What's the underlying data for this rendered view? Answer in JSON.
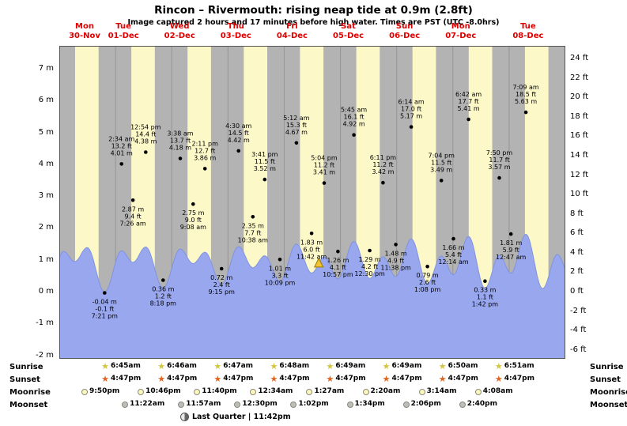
{
  "title": "Rincon – Rivermouth: rising  neap tide at 0.9m (2.8ft)",
  "subtitle": "Image captured 2 hours and 17 minutes before high water. Times are PST (UTC -8.0hrs)",
  "chart_data": {
    "type": "area",
    "x_range_hours": 216,
    "display_scale": 0.32,
    "daylight": {
      "sunrise_hour": 6.75,
      "sunset_hour": 16.78
    },
    "days": [
      {
        "name": "Mon",
        "date": "30-Nov"
      },
      {
        "name": "Tue",
        "date": "01-Dec"
      },
      {
        "name": "Wed",
        "date": "02-Dec"
      },
      {
        "name": "Thu",
        "date": "03-Dec"
      },
      {
        "name": "Fri",
        "date": "04-Dec"
      },
      {
        "name": "Sat",
        "date": "05-Dec"
      },
      {
        "name": "Sun",
        "date": "06-Dec"
      },
      {
        "name": "Mon",
        "date": "07-Dec"
      },
      {
        "name": "Tue",
        "date": "08-Dec"
      }
    ],
    "y_left_ticks": [
      {
        "value": 7,
        "label": "7 m"
      },
      {
        "value": 6,
        "label": "6 m"
      },
      {
        "value": 5,
        "label": "5 m"
      },
      {
        "value": 4,
        "label": "4 m"
      },
      {
        "value": 3,
        "label": "3 m"
      },
      {
        "value": 2,
        "label": "2 m"
      },
      {
        "value": 1,
        "label": "1 m"
      },
      {
        "value": 0,
        "label": "0 m"
      },
      {
        "value": -1,
        "label": "-1 m"
      },
      {
        "value": -2,
        "label": "-2 m"
      }
    ],
    "y_right_ticks": [
      {
        "value": 24,
        "label": "24 ft"
      },
      {
        "value": 22,
        "label": "22 ft"
      },
      {
        "value": 20,
        "label": "20 ft"
      },
      {
        "value": 18,
        "label": "18 ft"
      },
      {
        "value": 16,
        "label": "16 ft"
      },
      {
        "value": 14,
        "label": "14 ft"
      },
      {
        "value": 12,
        "label": "12 ft"
      },
      {
        "value": 10,
        "label": "10 ft"
      },
      {
        "value": 8,
        "label": "8 ft"
      },
      {
        "value": 6,
        "label": "6 ft"
      },
      {
        "value": 4,
        "label": "4 ft"
      },
      {
        "value": 2,
        "label": "2 ft"
      },
      {
        "value": 0,
        "label": "0 ft"
      },
      {
        "value": -2,
        "label": "-2 ft"
      },
      {
        "value": -4,
        "label": "-4 ft"
      },
      {
        "value": -6,
        "label": "-6 ft"
      }
    ],
    "tide_events": [
      {
        "day": 0,
        "kind": "low",
        "t_hours": 19.35,
        "height_m": -0.04,
        "lines": [
          "-0.04 m",
          "-0.1 ft",
          "7:21 pm"
        ]
      },
      {
        "day": 1,
        "kind": "high",
        "t_hours": 26.567,
        "height_m": 4.01,
        "lines": [
          "2:34 am",
          "13.2 ft",
          "4.01 m"
        ]
      },
      {
        "day": 1,
        "kind": "low",
        "t_hours": 31.433,
        "height_m": 2.87,
        "lines": [
          "2.87 m",
          "9.4 ft",
          "7:26 am"
        ]
      },
      {
        "day": 1,
        "kind": "high",
        "t_hours": 36.9,
        "height_m": 4.38,
        "lines": [
          "12:54 pm",
          "14.4 ft",
          "4.38 m"
        ]
      },
      {
        "day": 1,
        "kind": "low",
        "t_hours": 44.3,
        "height_m": 0.36,
        "lines": [
          "0.36 m",
          "1.2 ft",
          "8:18 pm"
        ]
      },
      {
        "day": 2,
        "kind": "high",
        "t_hours": 51.633,
        "height_m": 4.18,
        "lines": [
          "3:38 am",
          "13.7 ft",
          "4.18 m"
        ]
      },
      {
        "day": 2,
        "kind": "low",
        "t_hours": 57.133,
        "height_m": 2.75,
        "lines": [
          "2.75 m",
          "9.0 ft",
          "9:08 am"
        ]
      },
      {
        "day": 2,
        "kind": "high",
        "t_hours": 62.183,
        "height_m": 3.86,
        "lines": [
          "2:11 pm",
          "12.7 ft",
          "3.86 m"
        ]
      },
      {
        "day": 2,
        "kind": "low",
        "t_hours": 69.25,
        "height_m": 0.72,
        "lines": [
          "0.72 m",
          "2.4 ft",
          "9:15 pm"
        ]
      },
      {
        "day": 3,
        "kind": "high",
        "t_hours": 76.5,
        "height_m": 4.42,
        "lines": [
          "4:30 am",
          "14.5 ft",
          "4.42 m"
        ]
      },
      {
        "day": 3,
        "kind": "low",
        "t_hours": 82.633,
        "height_m": 2.35,
        "lines": [
          "2.35 m",
          "7.7 ft",
          "10:38 am"
        ]
      },
      {
        "day": 3,
        "kind": "high",
        "t_hours": 87.683,
        "height_m": 3.52,
        "lines": [
          "3:41 pm",
          "11.5 ft",
          "3.52 m"
        ]
      },
      {
        "day": 3,
        "kind": "low",
        "t_hours": 94.15,
        "height_m": 1.01,
        "lines": [
          "1.01 m",
          "3.3 ft",
          "10:09 pm"
        ]
      },
      {
        "day": 4,
        "kind": "high",
        "t_hours": 101.2,
        "height_m": 4.67,
        "lines": [
          "5:12 am",
          "15.3 ft",
          "4.67 m"
        ]
      },
      {
        "day": 4,
        "kind": "low",
        "t_hours": 107.7,
        "height_m": 1.83,
        "lines": [
          "1.83 m",
          "6.0 ft",
          "11:42 am"
        ]
      },
      {
        "day": 4,
        "kind": "high",
        "t_hours": 113.067,
        "height_m": 3.41,
        "lines": [
          "5:04 pm",
          "11.2 ft",
          "3.41 m"
        ]
      },
      {
        "day": 4,
        "kind": "low",
        "t_hours": 118.95,
        "height_m": 1.26,
        "lines": [
          "1.26 m",
          "4.1 ft",
          "10:57 pm"
        ]
      },
      {
        "day": 5,
        "kind": "high",
        "t_hours": 125.75,
        "height_m": 4.92,
        "lines": [
          "5:45 am",
          "16.1 ft",
          "4.92 m"
        ]
      },
      {
        "day": 5,
        "kind": "low",
        "t_hours": 132.5,
        "height_m": 1.29,
        "lines": [
          "1.29 m",
          "4.2 ft",
          "12:30 pm"
        ]
      },
      {
        "day": 5,
        "kind": "high",
        "t_hours": 138.183,
        "height_m": 3.42,
        "lines": [
          "6:11 pm",
          "11.2 ft",
          "3.42 m"
        ]
      },
      {
        "day": 5,
        "kind": "low",
        "t_hours": 143.633,
        "height_m": 1.48,
        "lines": [
          "1.48 m",
          "4.9 ft",
          "11:38 pm"
        ]
      },
      {
        "day": 6,
        "kind": "high",
        "t_hours": 150.233,
        "height_m": 5.17,
        "lines": [
          "6:14 am",
          "17.0 ft",
          "5.17 m"
        ]
      },
      {
        "day": 6,
        "kind": "low",
        "t_hours": 157.133,
        "height_m": 0.79,
        "lines": [
          "0.79 m",
          "2.6 ft",
          "1:08 pm"
        ]
      },
      {
        "day": 6,
        "kind": "high",
        "t_hours": 163.067,
        "height_m": 3.49,
        "lines": [
          "7:04 pm",
          "11.5 ft",
          "3.49 m"
        ]
      },
      {
        "day": 7,
        "kind": "low",
        "t_hours": 168.233,
        "height_m": 1.66,
        "lines": [
          "1.66 m",
          "5.4 ft",
          "12:14 am"
        ]
      },
      {
        "day": 7,
        "kind": "high",
        "t_hours": 174.7,
        "height_m": 5.41,
        "lines": [
          "6:42 am",
          "17.7 ft",
          "5.41 m"
        ]
      },
      {
        "day": 7,
        "kind": "low",
        "t_hours": 181.7,
        "height_m": 0.33,
        "lines": [
          "0.33 m",
          "1.1 ft",
          "1:42 pm"
        ]
      },
      {
        "day": 7,
        "kind": "high",
        "t_hours": 187.833,
        "height_m": 3.57,
        "lines": [
          "7:50 pm",
          "11.7 ft",
          "3.57 m"
        ]
      },
      {
        "day": 8,
        "kind": "low",
        "t_hours": 192.783,
        "height_m": 1.81,
        "lines": [
          "1.81 m",
          "5.9 ft",
          "12:47 am"
        ]
      },
      {
        "day": 8,
        "kind": "high",
        "t_hours": 199.15,
        "height_m": 5.63,
        "lines": [
          "7:09 am",
          "18.5 ft",
          "5.63 m"
        ]
      }
    ],
    "curve_padding_before": [
      {
        "t": -4.75,
        "h": -0.3
      },
      {
        "t": 1.75,
        "h": 3.95
      },
      {
        "t": 6.6,
        "h": 2.95
      },
      {
        "t": 11.9,
        "h": 4.32
      }
    ],
    "curve_padding_after": [
      {
        "t": 206.3,
        "h": 0.3
      },
      {
        "t": 212.6,
        "h": 3.65
      },
      {
        "t": 217.3,
        "h": 1.95
      }
    ],
    "now_marker": {
      "t_hours": 110.78
    },
    "colors": {
      "plot_bg": "#b3b3b3",
      "daylight": "#fcf8c8",
      "tide_fill": "#99a7ef",
      "tide_edge": "#8093e0",
      "day_label": "#e00000",
      "annotation": "#000000"
    }
  },
  "astro": {
    "rows": [
      {
        "id": "sunrise",
        "label": "Sunrise",
        "icon": "sunrise-star",
        "color": "#d2c63c",
        "entries": [
          {
            "day": 1,
            "time": "6:45am"
          },
          {
            "day": 2,
            "time": "6:46am"
          },
          {
            "day": 3,
            "time": "6:47am"
          },
          {
            "day": 4,
            "time": "6:48am"
          },
          {
            "day": 5,
            "time": "6:49am"
          },
          {
            "day": 6,
            "time": "6:49am"
          },
          {
            "day": 7,
            "time": "6:50am"
          },
          {
            "day": 8,
            "time": "6:51am"
          }
        ]
      },
      {
        "id": "sunset",
        "label": "Sunset",
        "icon": "sunset-star",
        "color": "#e2641f",
        "entries": [
          {
            "day": 1,
            "time": "4:47pm"
          },
          {
            "day": 2,
            "time": "4:47pm"
          },
          {
            "day": 3,
            "time": "4:47pm"
          },
          {
            "day": 4,
            "time": "4:47pm"
          },
          {
            "day": 5,
            "time": "4:47pm"
          },
          {
            "day": 6,
            "time": "4:47pm"
          },
          {
            "day": 7,
            "time": "4:47pm"
          },
          {
            "day": 8,
            "time": "4:47pm"
          }
        ]
      },
      {
        "id": "moonrise",
        "label": "Moonrise",
        "icon": "moonrise-circle",
        "color": "#fcf6bf",
        "entries": [
          {
            "day": 0,
            "time": "9:50pm"
          },
          {
            "day": 1,
            "time": "10:46pm"
          },
          {
            "day": 2,
            "time": "11:40pm"
          },
          {
            "day": 3,
            "time": "12:34am"
          },
          {
            "day": 4,
            "time": "1:27am"
          },
          {
            "day": 5,
            "time": "2:20am"
          },
          {
            "day": 6,
            "time": "3:14am"
          },
          {
            "day": 7,
            "time": "4:08am"
          }
        ]
      },
      {
        "id": "moonset",
        "label": "Moonset",
        "icon": "moonset-circle",
        "color": "#bdbdbd",
        "entries": [
          {
            "day": 1,
            "time": "11:22am"
          },
          {
            "day": 2,
            "time": "11:57am"
          },
          {
            "day": 3,
            "time": "12:30pm"
          },
          {
            "day": 4,
            "time": "1:02pm"
          },
          {
            "day": 5,
            "time": "1:34pm"
          },
          {
            "day": 6,
            "time": "2:06pm"
          },
          {
            "day": 7,
            "time": "2:40pm"
          }
        ]
      }
    ],
    "moon_phase": "Last Quarter | 11:42pm"
  }
}
